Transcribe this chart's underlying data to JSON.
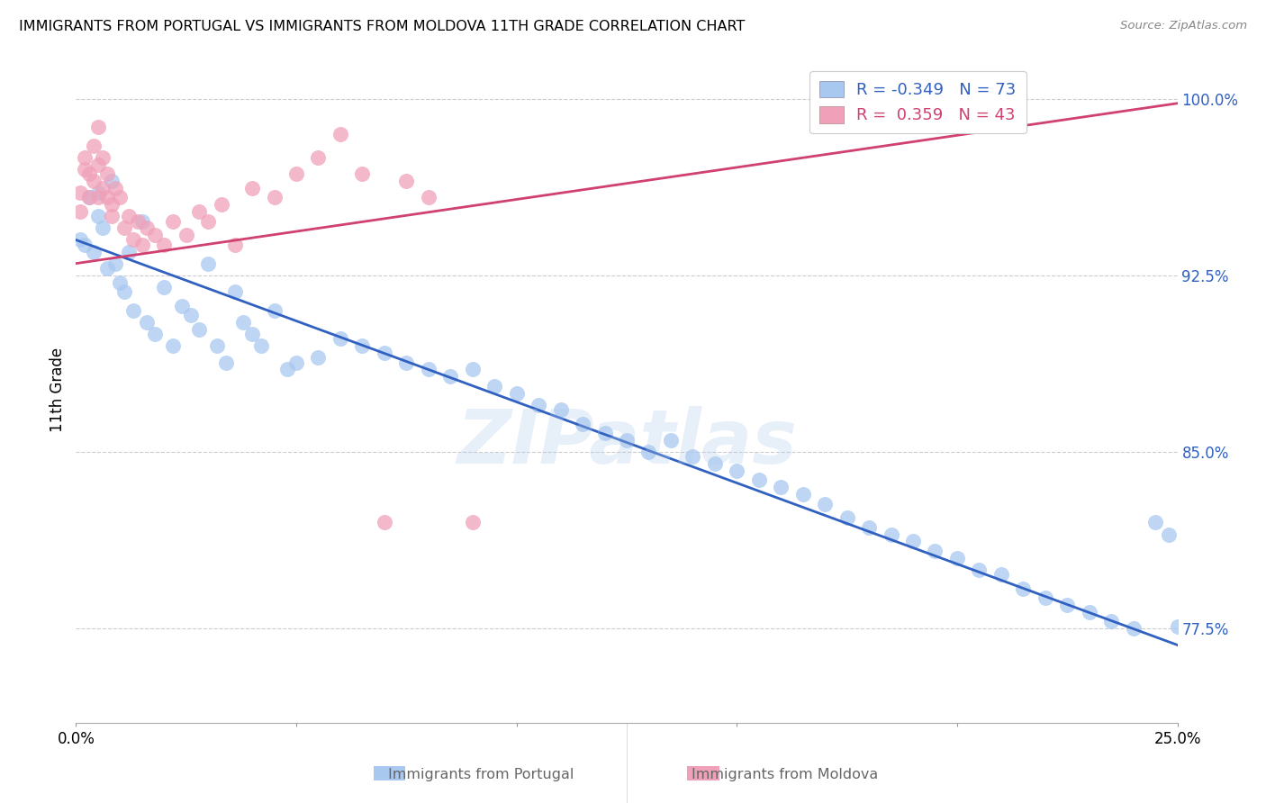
{
  "title": "IMMIGRANTS FROM PORTUGAL VS IMMIGRANTS FROM MOLDOVA 11TH GRADE CORRELATION CHART",
  "source": "Source: ZipAtlas.com",
  "ylabel": "11th Grade",
  "ytick_labels": [
    "77.5%",
    "85.0%",
    "92.5%",
    "100.0%"
  ],
  "ytick_values": [
    0.775,
    0.85,
    0.925,
    1.0
  ],
  "xlim": [
    0.0,
    0.25
  ],
  "ylim": [
    0.735,
    1.018
  ],
  "legend_blue_r": "R = -0.349",
  "legend_blue_n": "N = 73",
  "legend_pink_r": "R =  0.359",
  "legend_pink_n": "N = 43",
  "blue_color": "#A8C8F0",
  "pink_color": "#F0A0B8",
  "blue_line_color": "#3060C0",
  "pink_line_color": "#D04070",
  "watermark": "ZIPatlas",
  "blue_scatter_x": [
    0.001,
    0.002,
    0.003,
    0.004,
    0.005,
    0.005,
    0.006,
    0.007,
    0.008,
    0.009,
    0.01,
    0.011,
    0.012,
    0.013,
    0.015,
    0.016,
    0.018,
    0.02,
    0.022,
    0.024,
    0.026,
    0.028,
    0.03,
    0.032,
    0.034,
    0.036,
    0.038,
    0.04,
    0.042,
    0.045,
    0.048,
    0.05,
    0.055,
    0.06,
    0.065,
    0.07,
    0.075,
    0.08,
    0.085,
    0.09,
    0.095,
    0.1,
    0.105,
    0.11,
    0.115,
    0.12,
    0.125,
    0.13,
    0.135,
    0.14,
    0.145,
    0.15,
    0.155,
    0.16,
    0.165,
    0.17,
    0.175,
    0.18,
    0.185,
    0.19,
    0.195,
    0.2,
    0.205,
    0.21,
    0.215,
    0.22,
    0.225,
    0.23,
    0.235,
    0.24,
    0.245,
    0.248,
    0.25
  ],
  "blue_scatter_y": [
    0.94,
    0.938,
    0.958,
    0.935,
    0.95,
    0.96,
    0.945,
    0.928,
    0.965,
    0.93,
    0.922,
    0.918,
    0.935,
    0.91,
    0.948,
    0.905,
    0.9,
    0.92,
    0.895,
    0.912,
    0.908,
    0.902,
    0.93,
    0.895,
    0.888,
    0.918,
    0.905,
    0.9,
    0.895,
    0.91,
    0.885,
    0.888,
    0.89,
    0.898,
    0.895,
    0.892,
    0.888,
    0.885,
    0.882,
    0.885,
    0.878,
    0.875,
    0.87,
    0.868,
    0.862,
    0.858,
    0.855,
    0.85,
    0.855,
    0.848,
    0.845,
    0.842,
    0.838,
    0.835,
    0.832,
    0.828,
    0.822,
    0.818,
    0.815,
    0.812,
    0.808,
    0.805,
    0.8,
    0.798,
    0.792,
    0.788,
    0.785,
    0.782,
    0.778,
    0.775,
    0.82,
    0.815,
    0.776
  ],
  "pink_scatter_x": [
    0.001,
    0.001,
    0.002,
    0.002,
    0.003,
    0.003,
    0.004,
    0.004,
    0.005,
    0.005,
    0.005,
    0.006,
    0.006,
    0.007,
    0.007,
    0.008,
    0.008,
    0.009,
    0.01,
    0.011,
    0.012,
    0.013,
    0.014,
    0.015,
    0.016,
    0.018,
    0.02,
    0.022,
    0.025,
    0.028,
    0.03,
    0.033,
    0.036,
    0.04,
    0.045,
    0.05,
    0.055,
    0.06,
    0.065,
    0.07,
    0.075,
    0.08,
    0.09
  ],
  "pink_scatter_y": [
    0.952,
    0.96,
    0.97,
    0.975,
    0.968,
    0.958,
    0.98,
    0.965,
    0.972,
    0.958,
    0.988,
    0.962,
    0.975,
    0.958,
    0.968,
    0.955,
    0.95,
    0.962,
    0.958,
    0.945,
    0.95,
    0.94,
    0.948,
    0.938,
    0.945,
    0.942,
    0.938,
    0.948,
    0.942,
    0.952,
    0.948,
    0.955,
    0.938,
    0.962,
    0.958,
    0.968,
    0.975,
    0.985,
    0.968,
    0.82,
    0.965,
    0.958,
    0.82
  ],
  "blue_trendline_x": [
    0.0,
    0.25
  ],
  "blue_trendline_y": [
    0.94,
    0.768
  ],
  "pink_trendline_x": [
    0.0,
    0.25
  ],
  "pink_trendline_y": [
    0.93,
    0.998
  ]
}
